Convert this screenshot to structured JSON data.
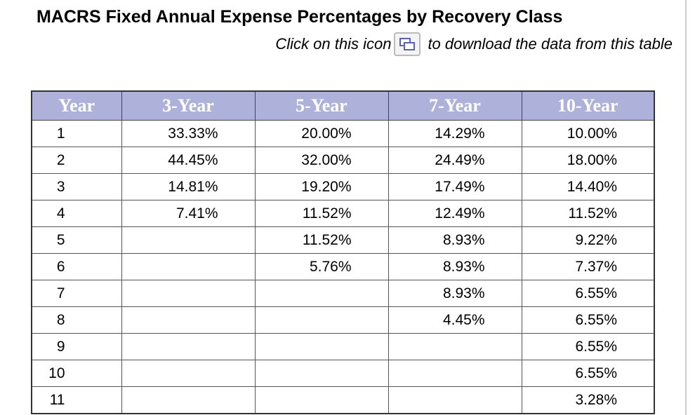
{
  "header": {
    "title": "MACRS Fixed Annual Expense Percentages by Recovery Class",
    "instruction": [
      "Click on this icon",
      "to download the data from this table"
    ]
  },
  "table": {
    "columns": [
      "Year",
      "3-Year",
      "5-Year",
      "7-Year",
      "10-Year"
    ],
    "rows": [
      [
        "1",
        "33.33%",
        "20.00%",
        "14.29%",
        "10.00%"
      ],
      [
        "2",
        "44.45%",
        "32.00%",
        "24.49%",
        "18.00%"
      ],
      [
        "3",
        "14.81%",
        "19.20%",
        "17.49%",
        "14.40%"
      ],
      [
        "4",
        "7.41%",
        "11.52%",
        "12.49%",
        "11.52%"
      ],
      [
        "5",
        null,
        "11.52%",
        "8.93%",
        "9.22%"
      ],
      [
        "6",
        null,
        "5.76%",
        "8.93%",
        "7.37%"
      ],
      [
        "7",
        null,
        null,
        "8.93%",
        "6.55%"
      ],
      [
        "8",
        null,
        null,
        "4.45%",
        "6.55%"
      ],
      [
        "9",
        null,
        null,
        null,
        "6.55%"
      ],
      [
        "10",
        null,
        null,
        null,
        "6.55%"
      ],
      [
        "11",
        null,
        null,
        null,
        "3.28%"
      ]
    ]
  }
}
